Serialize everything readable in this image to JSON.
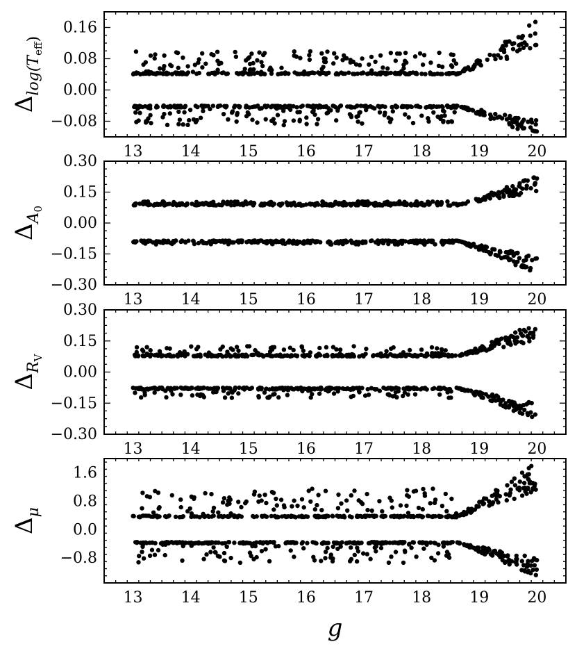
{
  "chart_data": [
    {
      "type": "scatter",
      "ylabel_base": "Δ",
      "ylabel_sub": "log(T",
      "ylabel_subsub": "eff",
      "ylabel_sub_close": ")",
      "xlim": [
        12.5,
        20.5
      ],
      "ylim": [
        -0.12,
        0.2
      ],
      "xticks": [
        13,
        14,
        15,
        16,
        17,
        18,
        19,
        20
      ],
      "xtick_labels": [
        "13",
        "14",
        "15",
        "16",
        "17",
        "18",
        "19",
        "20"
      ],
      "yticks": [
        0.16,
        0.08,
        0.0,
        -0.08
      ],
      "ytick_labels": [
        "0.16",
        "0.08",
        "0.00",
        "−0.08"
      ],
      "x_range": [
        13,
        20
      ],
      "series": [
        {
          "band": "upper",
          "base": 0.04,
          "tail_max": 0.18,
          "scatter": 0.06
        },
        {
          "band": "lower",
          "base": -0.04,
          "tail_min": -0.12,
          "scatter": -0.05
        }
      ]
    },
    {
      "type": "scatter",
      "ylabel_base": "Δ",
      "ylabel_sub": "A",
      "ylabel_subsub": "0",
      "ylabel_sub_close": "",
      "xlim": [
        12.5,
        20.5
      ],
      "ylim": [
        -0.3,
        0.3
      ],
      "xticks": [
        13,
        14,
        15,
        16,
        17,
        18,
        19,
        20
      ],
      "xtick_labels": [
        "13",
        "14",
        "15",
        "16",
        "17",
        "18",
        "19",
        "20"
      ],
      "yticks": [
        0.3,
        0.15,
        0.0,
        -0.15,
        -0.3
      ],
      "ytick_labels": [
        "0.30",
        "0.15",
        "0.00",
        "−0.15",
        "−0.30"
      ],
      "x_range": [
        13,
        20
      ],
      "series": [
        {
          "band": "upper",
          "base": 0.085,
          "tail_max": 0.23,
          "scatter": 0.02
        },
        {
          "band": "lower",
          "base": -0.085,
          "tail_min": -0.25,
          "scatter": -0.02
        }
      ]
    },
    {
      "type": "scatter",
      "ylabel_base": "Δ",
      "ylabel_sub": "R",
      "ylabel_subsub": "V",
      "ylabel_sub_close": "",
      "xlim": [
        12.5,
        20.5
      ],
      "ylim": [
        -0.3,
        0.3
      ],
      "xticks": [
        13,
        14,
        15,
        16,
        17,
        18,
        19,
        20
      ],
      "xtick_labels": [
        "13",
        "14",
        "15",
        "16",
        "17",
        "18",
        "19",
        "20"
      ],
      "yticks": [
        0.3,
        0.15,
        0.0,
        -0.15,
        -0.3
      ],
      "ytick_labels": [
        "0.30",
        "0.15",
        "0.00",
        "−0.15",
        "−0.30"
      ],
      "x_range": [
        13,
        20
      ],
      "series": [
        {
          "band": "upper",
          "base": 0.075,
          "tail_max": 0.24,
          "scatter": 0.05
        },
        {
          "band": "lower",
          "base": -0.075,
          "tail_min": -0.24,
          "scatter": -0.05
        }
      ]
    },
    {
      "type": "scatter",
      "ylabel_base": "Δ",
      "ylabel_sub": "μ",
      "ylabel_subsub": "",
      "ylabel_sub_close": "",
      "xlabel": "g",
      "xlim": [
        12.5,
        20.5
      ],
      "ylim": [
        -1.5,
        2.0
      ],
      "xticks": [
        13,
        14,
        15,
        16,
        17,
        18,
        19,
        20
      ],
      "xtick_labels": [
        "13",
        "14",
        "15",
        "16",
        "17",
        "18",
        "19",
        "20"
      ],
      "yticks": [
        1.6,
        0.8,
        0.0,
        -0.8
      ],
      "ytick_labels": [
        "1.6",
        "0.8",
        "0.0",
        "−0.8"
      ],
      "x_range": [
        13,
        20
      ],
      "series": [
        {
          "band": "upper",
          "base": 0.35,
          "tail_max": 1.9,
          "scatter": 0.8
        },
        {
          "band": "lower",
          "base": -0.35,
          "tail_min": -1.35,
          "scatter": -0.6
        }
      ]
    }
  ]
}
